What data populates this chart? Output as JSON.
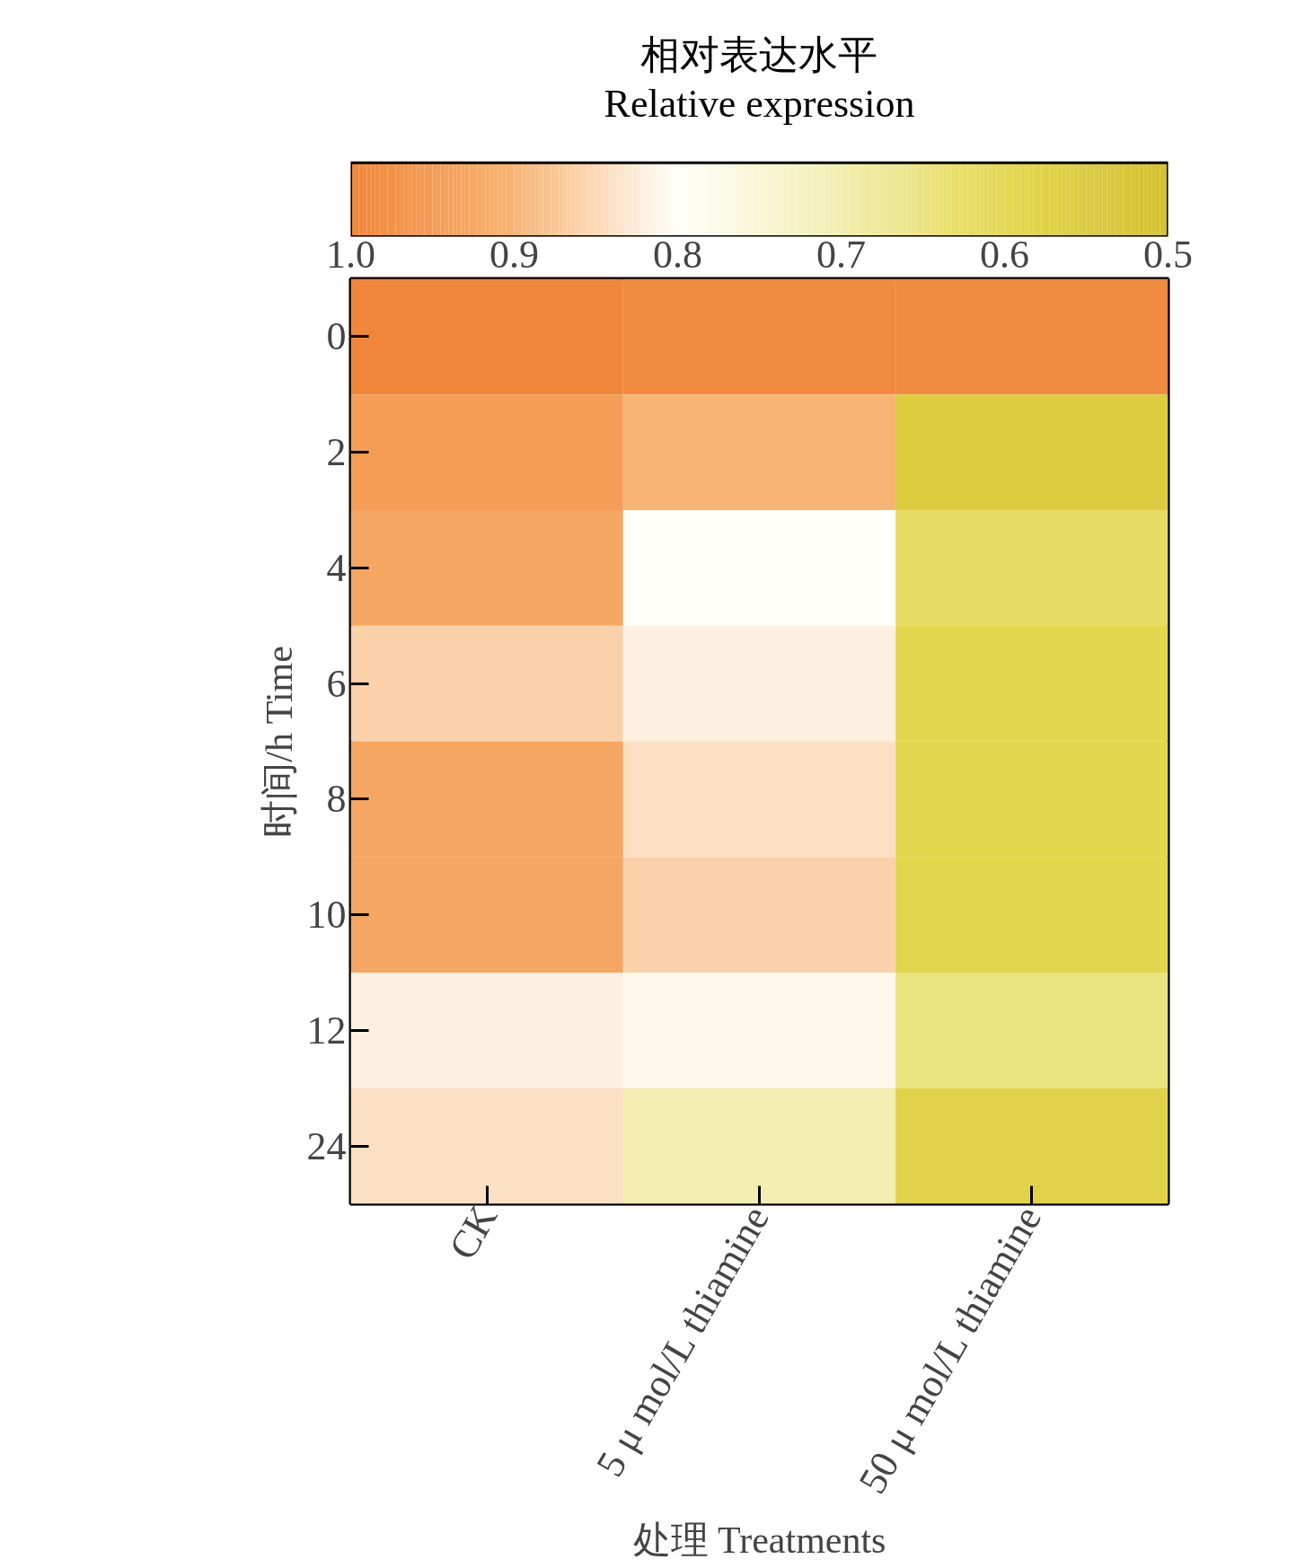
{
  "chart_data": {
    "type": "heatmap",
    "clabel": "相对表达水平\nRelative expression",
    "xlabel": "处理 Treatments",
    "ylabel": "时间/h Time",
    "categories": [
      "CK",
      "5 μ mol/L thiamine",
      "50 μ mol/L thiamine"
    ],
    "y_categories": [
      "0",
      "2",
      "4",
      "6",
      "8",
      "10",
      "12",
      "24"
    ],
    "cells": [
      [
        1.0,
        0.99,
        0.99
      ],
      [
        0.95,
        0.9,
        0.55
      ],
      [
        0.93,
        0.8,
        0.62
      ],
      [
        0.86,
        0.82,
        0.59
      ],
      [
        0.93,
        0.84,
        0.59
      ],
      [
        0.93,
        0.86,
        0.59
      ],
      [
        0.82,
        0.81,
        0.65
      ],
      [
        0.84,
        0.7,
        0.58
      ]
    ],
    "clim": [
      1.0,
      0.5
    ],
    "cticks": [
      {
        "value": 1.0,
        "label": "1.0"
      },
      0.9,
      0.8,
      0.7,
      0.6,
      0.5
    ]
  }
}
